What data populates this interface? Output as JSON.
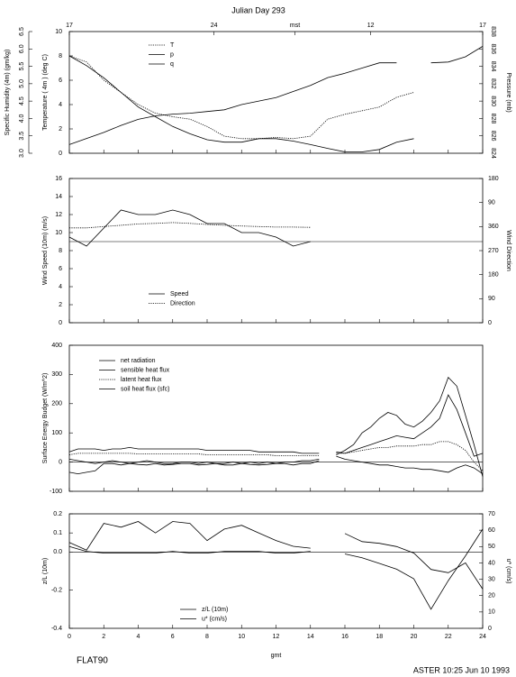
{
  "chart_data": [
    {
      "type": "line",
      "title": "Julian Day 293",
      "x": [
        0,
        1,
        2,
        3,
        4,
        5,
        6,
        7,
        8,
        9,
        10,
        11,
        12,
        13,
        14,
        15,
        16,
        17,
        18,
        19,
        20,
        21,
        22,
        23,
        24
      ],
      "xlim": [
        0,
        24
      ],
      "xticks": [
        0,
        2,
        4,
        6,
        8,
        10,
        12,
        14,
        16,
        18,
        20,
        22,
        24
      ],
      "x2ticks": [
        {
          "value": 0,
          "label": "17"
        },
        {
          "value": 8.4,
          "label": "24"
        },
        {
          "value": 13.1,
          "label": "mst"
        },
        {
          "value": 17.5,
          "label": "12"
        },
        {
          "value": 24,
          "label": "17"
        }
      ],
      "ylim": [
        0,
        10
      ],
      "yticks": [
        0,
        2,
        4,
        6,
        8,
        10
      ],
      "ylabel": "Temperature ( 4m ) (deg C)",
      "y2lim": [
        824,
        838
      ],
      "y2ticks": [
        824,
        826,
        828,
        830,
        832,
        834,
        836,
        838
      ],
      "y2label": "Pressure (mb)",
      "y3lim": [
        3.0,
        6.5
      ],
      "y3ticks": [
        {
          "value": 3,
          "label": "3.0"
        },
        3.5,
        {
          "value": 4,
          "label": "4.0"
        },
        4.5,
        {
          "value": 5,
          "label": "5.0"
        },
        5.5,
        {
          "value": 6,
          "label": "6.0"
        },
        6.5
      ],
      "y3label": "Specific Humidity (4m) (gm/kg)",
      "series": [
        {
          "name": "T",
          "color": "#000000",
          "style": "dotted",
          "axis": "y",
          "values": [
            8.0,
            7.5,
            6.0,
            5.0,
            4.0,
            3.3,
            3.0,
            2.8,
            2.2,
            1.4,
            1.2,
            1.2,
            1.3,
            1.2,
            1.4,
            2.8,
            3.2,
            3.5,
            3.8,
            4.6,
            5.0,
            null,
            null,
            null,
            null
          ]
        },
        {
          "name": "p",
          "color": "#000000",
          "style": "solid",
          "axis": "y2",
          "values": [
            825.0,
            825.7,
            826.4,
            827.2,
            827.9,
            828.3,
            828.5,
            828.6,
            828.8,
            829.0,
            829.6,
            830.0,
            830.4,
            831.1,
            831.8,
            832.7,
            833.2,
            833.8,
            834.4,
            834.4,
            null,
            834.4,
            834.5,
            835.1,
            836.3
          ]
        },
        {
          "name": "q",
          "color": "#000000",
          "style": "solid",
          "axis": "y3",
          "values": [
            5.8,
            5.52,
            5.17,
            4.75,
            4.33,
            4.05,
            3.77,
            3.56,
            3.39,
            3.32,
            3.32,
            3.42,
            3.42,
            3.35,
            3.25,
            3.14,
            3.04,
            3.04,
            3.11,
            3.32,
            3.42,
            null,
            null,
            null,
            null
          ]
        }
      ]
    },
    {
      "type": "line",
      "x": [
        0,
        1,
        2,
        3,
        4,
        5,
        6,
        7,
        8,
        9,
        10,
        11,
        12,
        13,
        14,
        15,
        16,
        17,
        18,
        19,
        20,
        21,
        22,
        23,
        24
      ],
      "xlim": [
        0,
        24
      ],
      "xticks": [
        0,
        2,
        4,
        6,
        8,
        10,
        12,
        14,
        16,
        18,
        20,
        22,
        24
      ],
      "ylim": [
        0,
        16
      ],
      "yticks": [
        0,
        2,
        4,
        6,
        8,
        10,
        12,
        14,
        16
      ],
      "ylabel": "Wind Speed (10m) (m/s)",
      "y2lim": [
        0,
        540
      ],
      "y2ticks": [
        0,
        90,
        180,
        270,
        360,
        {
          "value": 450,
          "label": "90"
        },
        {
          "value": 540,
          "label": "180"
        }
      ],
      "y2label": "Wind Direction",
      "hline": 9,
      "series": [
        {
          "name": "Speed",
          "color": "#000000",
          "style": "solid",
          "axis": "y",
          "values": [
            9.5,
            8.5,
            10.5,
            12.5,
            12,
            12,
            12.5,
            12,
            11,
            11,
            10,
            10,
            9.5,
            8.5,
            9,
            null,
            null,
            null,
            null,
            null,
            null,
            null,
            null,
            null,
            null
          ]
        },
        {
          "name": "Direction",
          "color": "#000000",
          "style": "dotted",
          "axis": "y2",
          "values": [
            355,
            355,
            360,
            365,
            370,
            372,
            375,
            372,
            368,
            365,
            362,
            360,
            358,
            358,
            357,
            null,
            null,
            null,
            null,
            null,
            null,
            null,
            null,
            null,
            null
          ]
        }
      ]
    },
    {
      "type": "line",
      "x": [
        0,
        0.5,
        1,
        1.5,
        2,
        2.5,
        3,
        3.5,
        4,
        4.5,
        5,
        5.5,
        6,
        6.5,
        7,
        7.5,
        8,
        8.5,
        9,
        9.5,
        10,
        10.5,
        11,
        11.5,
        12,
        12.5,
        13,
        13.5,
        14,
        14.5,
        15,
        15.5,
        16,
        16.5,
        17,
        17.5,
        18,
        18.5,
        19,
        19.5,
        20,
        20.5,
        21,
        21.5,
        22,
        22.5,
        23,
        23.5,
        24
      ],
      "xlim": [
        0,
        24
      ],
      "xticks": [
        0,
        2,
        4,
        6,
        8,
        10,
        12,
        14,
        16,
        18,
        20,
        22,
        24
      ],
      "ylim": [
        -100,
        400
      ],
      "yticks": [
        -100,
        0,
        100,
        200,
        300,
        400
      ],
      "ylabel": "Surface Energy Budget (W/m^2)",
      "hline": 0,
      "series": [
        {
          "name": "net radiation",
          "color": "#000000",
          "style": "solid",
          "axis": "y",
          "values": [
            -35,
            -40,
            -35,
            -30,
            -5,
            -5,
            -10,
            -5,
            -8,
            -10,
            -5,
            -10,
            -8,
            -5,
            -5,
            -10,
            -8,
            -5,
            -10,
            -10,
            -5,
            -8,
            -10,
            -8,
            -5,
            -5,
            -10,
            -5,
            -5,
            5,
            null,
            25,
            40,
            60,
            100,
            120,
            150,
            170,
            160,
            130,
            120,
            140,
            170,
            210,
            290,
            260,
            160,
            60,
            -50
          ]
        },
        {
          "name": "sensible heat flux",
          "color": "#000000",
          "style": "solid",
          "axis": "y",
          "values": [
            35,
            45,
            45,
            45,
            40,
            45,
            45,
            50,
            45,
            45,
            45,
            45,
            45,
            45,
            45,
            45,
            40,
            40,
            40,
            40,
            40,
            40,
            35,
            35,
            35,
            35,
            35,
            30,
            30,
            30,
            null,
            35,
            30,
            40,
            50,
            60,
            70,
            80,
            90,
            85,
            80,
            100,
            120,
            150,
            230,
            180,
            100,
            20,
            30
          ]
        },
        {
          "name": "latent heat flux",
          "color": "#000000",
          "style": "dotted",
          "axis": "y",
          "values": [
            25,
            30,
            30,
            30,
            30,
            30,
            30,
            30,
            28,
            28,
            28,
            28,
            28,
            28,
            28,
            28,
            25,
            25,
            25,
            25,
            25,
            25,
            25,
            25,
            22,
            22,
            22,
            22,
            22,
            22,
            null,
            30,
            30,
            35,
            40,
            45,
            50,
            50,
            55,
            55,
            55,
            60,
            60,
            70,
            70,
            60,
            40,
            0,
            -30
          ]
        },
        {
          "name": "soil heat flux (sfc)",
          "color": "#000000",
          "style": "solid",
          "axis": "y",
          "values": [
            10,
            5,
            0,
            -5,
            0,
            5,
            0,
            -5,
            0,
            5,
            0,
            -5,
            -5,
            0,
            0,
            -5,
            0,
            -5,
            -5,
            0,
            -5,
            0,
            -5,
            0,
            -5,
            0,
            0,
            5,
            5,
            10,
            null,
            20,
            10,
            5,
            0,
            -5,
            -10,
            -10,
            -15,
            -20,
            -20,
            -25,
            -25,
            -30,
            -35,
            -20,
            -10,
            -20,
            -40
          ]
        }
      ]
    },
    {
      "type": "line",
      "x": [
        0,
        1,
        2,
        3,
        4,
        5,
        6,
        7,
        8,
        9,
        10,
        11,
        12,
        13,
        14,
        15,
        16,
        17,
        18,
        19,
        20,
        21,
        22,
        23,
        24
      ],
      "xlim": [
        0,
        24
      ],
      "xticks": [
        0,
        2,
        4,
        6,
        8,
        10,
        12,
        14,
        16,
        18,
        20,
        22,
        24
      ],
      "xlabel": "gmt",
      "ylim": [
        -0.4,
        0.2
      ],
      "yticks": [
        -0.4,
        -0.2,
        {
          "value": 0,
          "label": "0.0"
        },
        0.1,
        0.2
      ],
      "ylabel": "z/L (10m)",
      "y2lim": [
        0,
        70
      ],
      "y2ticks": [
        0,
        10,
        20,
        30,
        40,
        50,
        60,
        70
      ],
      "y2label": "u* (cm/s)",
      "hline": 0,
      "series": [
        {
          "name": "z/L (10m)",
          "color": "#000000",
          "style": "solid",
          "axis": "y",
          "values": [
            0.05,
            0.01,
            0.15,
            0.13,
            0.16,
            0.1,
            0.16,
            0.15,
            0.06,
            0.12,
            0.14,
            0.1,
            0.06,
            0.03,
            0.02,
            null,
            -0.01,
            -0.03,
            -0.06,
            -0.09,
            -0.14,
            -0.3,
            -0.15,
            -0.02,
            0.12
          ]
        },
        {
          "name": "u* (cm/s)",
          "color": "#000000",
          "style": "solid",
          "axis": "y2",
          "values": [
            50,
            47,
            46,
            46,
            46,
            46,
            47,
            46,
            46,
            47,
            47,
            47,
            46,
            46,
            47,
            null,
            58,
            53,
            52,
            50,
            46,
            36,
            34,
            40,
            24
          ]
        }
      ]
    }
  ],
  "footer": {
    "left": "FLAT90",
    "right": "ASTER 10:25 Jun 10 1993"
  }
}
